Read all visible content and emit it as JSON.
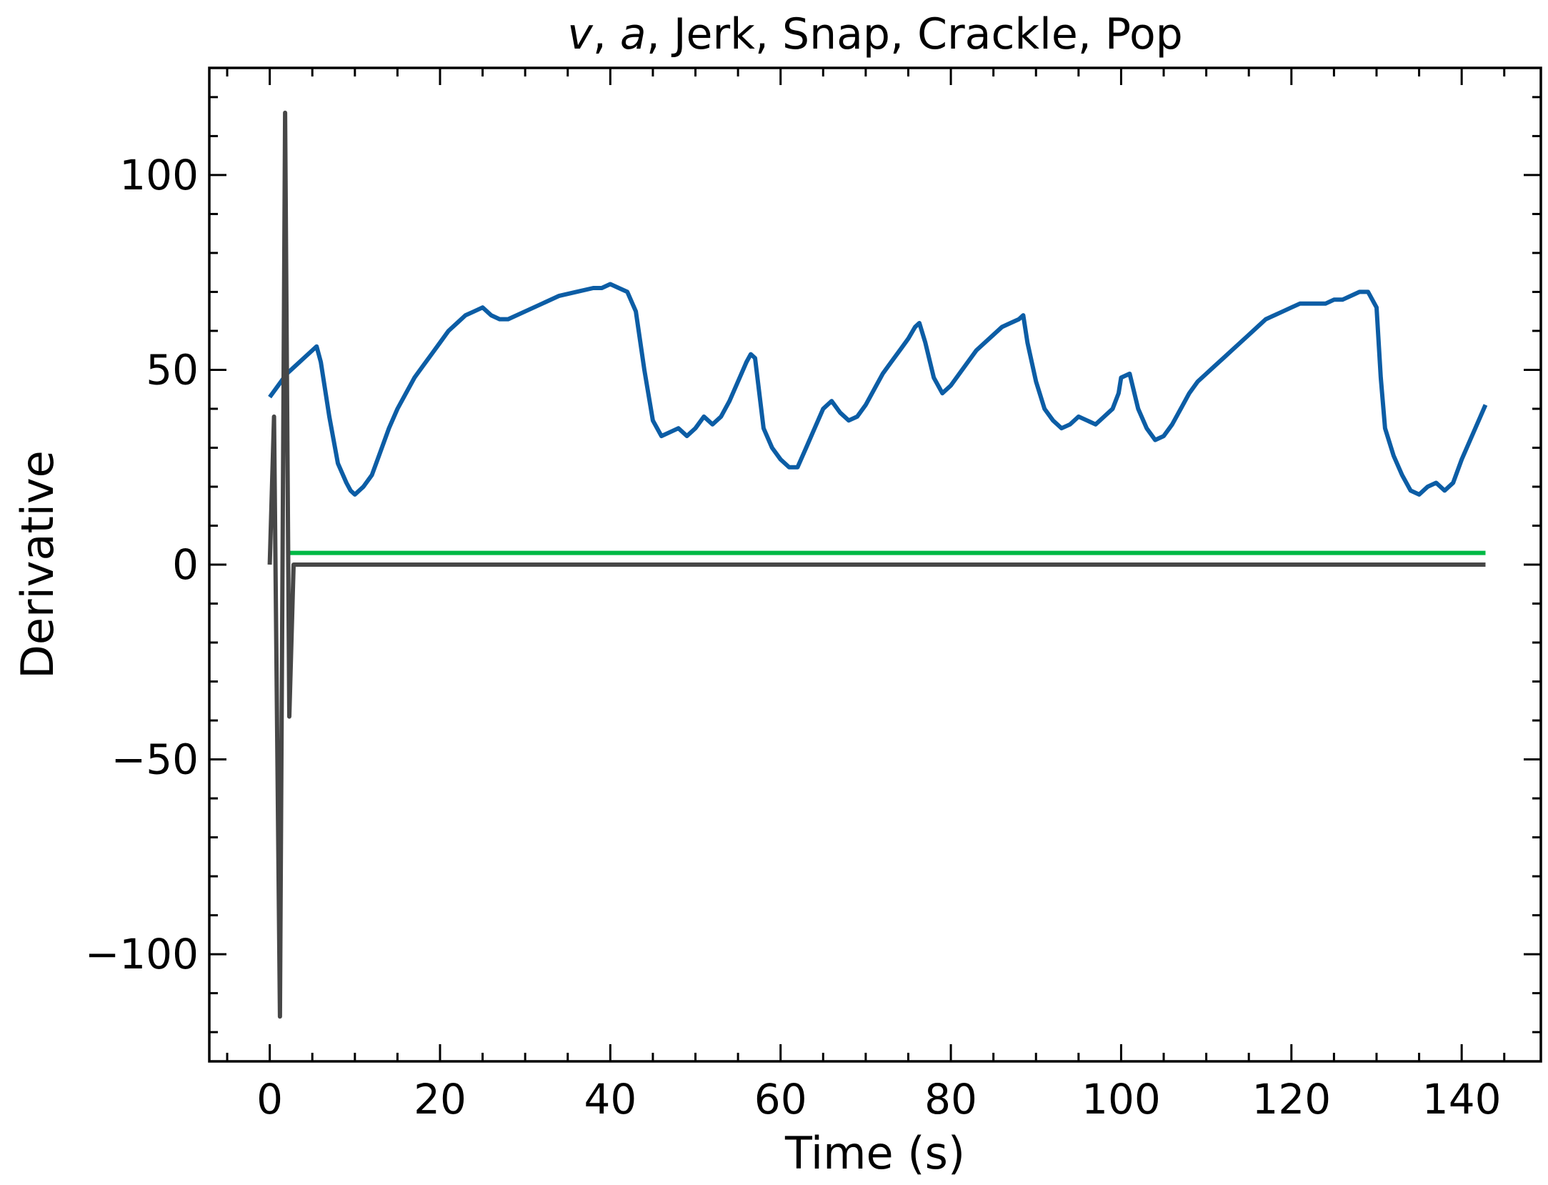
{
  "chart_data": {
    "type": "line",
    "title_parts": [
      {
        "text": "v",
        "italic": true
      },
      {
        "text": ", ",
        "italic": false
      },
      {
        "text": "a",
        "italic": true
      },
      {
        "text": ",  Jerk, Snap, Crackle, Pop",
        "italic": false
      }
    ],
    "xlabel": "Time (s)",
    "ylabel": "Derivative",
    "xlim": [
      -7.1,
      149.3
    ],
    "ylim": [
      -127.5,
      127.5
    ],
    "xticks": [
      0,
      20,
      40,
      60,
      80,
      100,
      120,
      140
    ],
    "xtick_labels": [
      "0",
      "20",
      "40",
      "60",
      "80",
      "100",
      "120",
      "140"
    ],
    "yticks": [
      -100,
      -50,
      0,
      50,
      100
    ],
    "ytick_labels": [
      "−100",
      "−50",
      "0",
      "50",
      "100"
    ],
    "grid": false,
    "ticks_direction": "in",
    "minor_ticks": true,
    "series": [
      {
        "color": "#0C5DA5",
        "x": [
          0,
          1,
          2,
          3,
          4,
          5,
          5.5,
          6,
          7,
          8,
          9,
          9.5,
          10,
          11,
          12,
          13,
          14,
          15,
          16,
          17,
          18,
          19,
          20,
          21,
          22,
          23,
          24,
          25,
          26,
          27,
          28,
          30,
          32,
          34,
          36,
          38,
          39,
          40,
          41,
          42,
          43,
          44,
          45,
          46,
          47,
          48,
          49,
          50,
          51,
          52,
          53,
          54,
          55,
          56,
          56.5,
          57,
          58,
          59,
          60,
          61,
          62,
          63,
          64,
          65,
          66,
          67,
          68,
          69,
          70,
          71,
          72,
          73,
          74,
          75,
          75.8,
          76.3,
          77,
          78,
          79,
          80,
          81,
          82,
          83,
          84,
          85,
          86,
          87,
          88,
          88.5,
          89,
          90,
          91,
          92,
          93,
          94,
          95,
          96,
          97,
          98,
          99,
          99.7,
          100,
          101,
          102,
          103,
          104,
          105,
          106,
          107,
          108,
          109,
          110,
          111,
          112,
          113,
          114,
          115,
          116,
          117,
          118,
          119,
          120,
          121,
          122,
          123,
          124,
          125,
          126,
          127,
          128,
          129,
          130,
          130.5,
          131,
          132,
          133,
          134,
          135,
          136,
          137,
          138,
          139,
          140,
          141,
          142,
          142.8
        ],
        "y": [
          43,
          46,
          49,
          51,
          53,
          55,
          56,
          52,
          38,
          26,
          21,
          19,
          18,
          20,
          23,
          29,
          35,
          40,
          44,
          48,
          51,
          54,
          57,
          60,
          62,
          64,
          65,
          66,
          64,
          63,
          63,
          65,
          67,
          69,
          70,
          71,
          71,
          72,
          71,
          70,
          65,
          50,
          37,
          33,
          34,
          35,
          33,
          35,
          38,
          36,
          38,
          42,
          47,
          52,
          54,
          53,
          35,
          30,
          27,
          25,
          25,
          30,
          35,
          40,
          42,
          39,
          37,
          38,
          41,
          45,
          49,
          52,
          55,
          58,
          61,
          62,
          57,
          48,
          44,
          46,
          49,
          52,
          55,
          57,
          59,
          61,
          62,
          63,
          64,
          57,
          47,
          40,
          37,
          35,
          36,
          38,
          37,
          36,
          38,
          40,
          44,
          48,
          49,
          40,
          35,
          32,
          33,
          36,
          40,
          44,
          47,
          49,
          51,
          53,
          55,
          57,
          59,
          61,
          63,
          64,
          65,
          66,
          67,
          67,
          67,
          67,
          68,
          68,
          69,
          70,
          70,
          66,
          48,
          35,
          28,
          23,
          19,
          18,
          20,
          21,
          19,
          21,
          27,
          32,
          37,
          41
        ]
      },
      {
        "color": "#00B945",
        "x": [
          2,
          142.8
        ],
        "y": [
          3,
          3
        ]
      },
      {
        "color": "#474747",
        "x": [
          0,
          0.5,
          1.2,
          1.8,
          2.3,
          2.8,
          142.8
        ],
        "y": [
          0,
          38,
          -116,
          116,
          -39,
          0,
          0
        ]
      }
    ]
  }
}
